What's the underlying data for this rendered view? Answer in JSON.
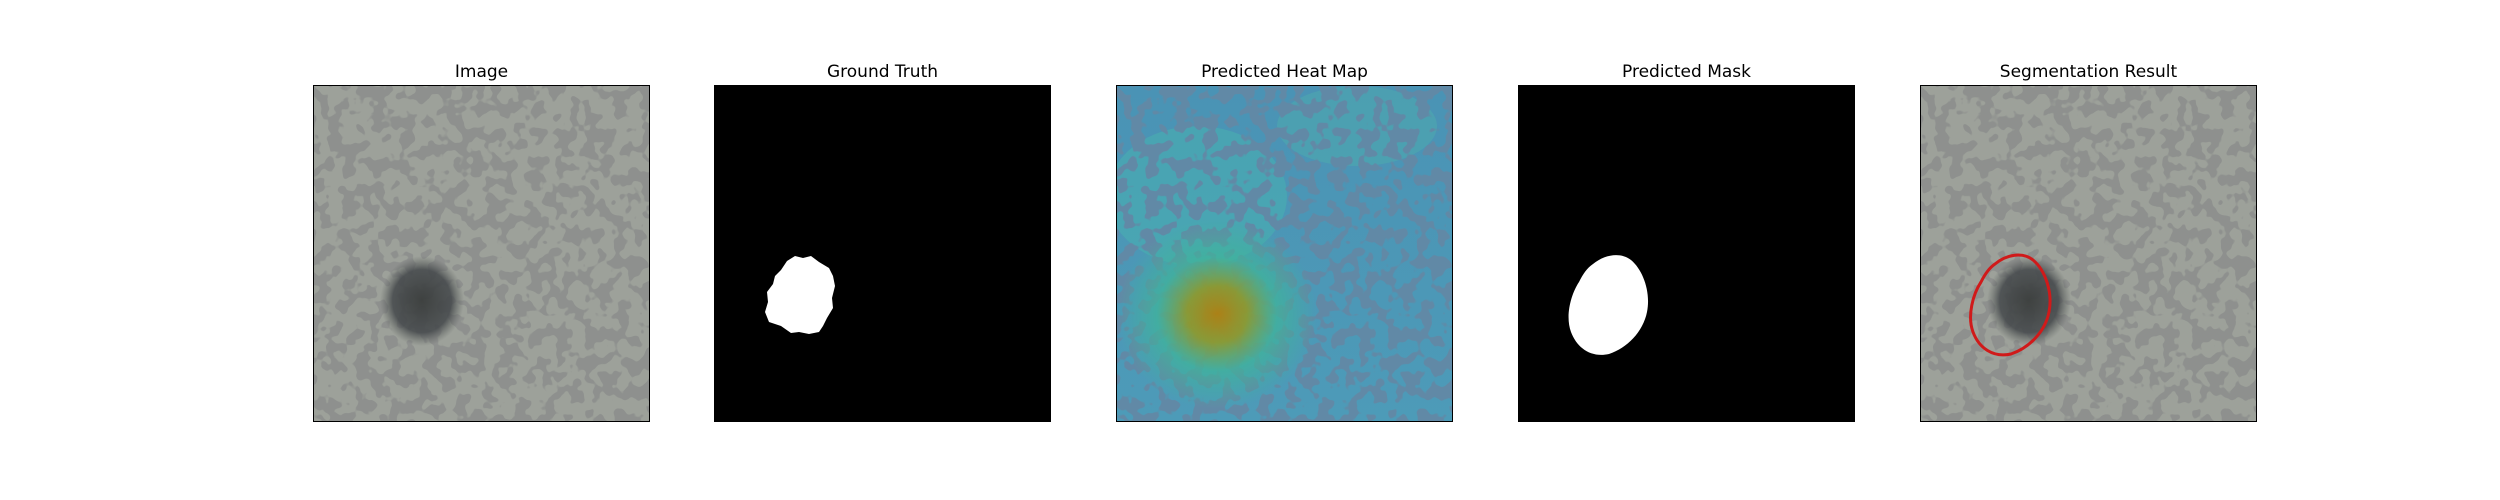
{
  "panels": [
    {
      "title": "Image",
      "icon": "texture-image"
    },
    {
      "title": "Ground Truth",
      "icon": "binary-mask"
    },
    {
      "title": "Predicted Heat Map",
      "icon": "heat-map-overlay"
    },
    {
      "title": "Predicted Mask",
      "icon": "binary-mask"
    },
    {
      "title": "Segmentation Result",
      "icon": "contour-overlay"
    }
  ],
  "colors": {
    "background": "#ffffff",
    "mask_foreground": "#ffffff",
    "mask_background": "#000000",
    "contour": "#d01a1a"
  }
}
